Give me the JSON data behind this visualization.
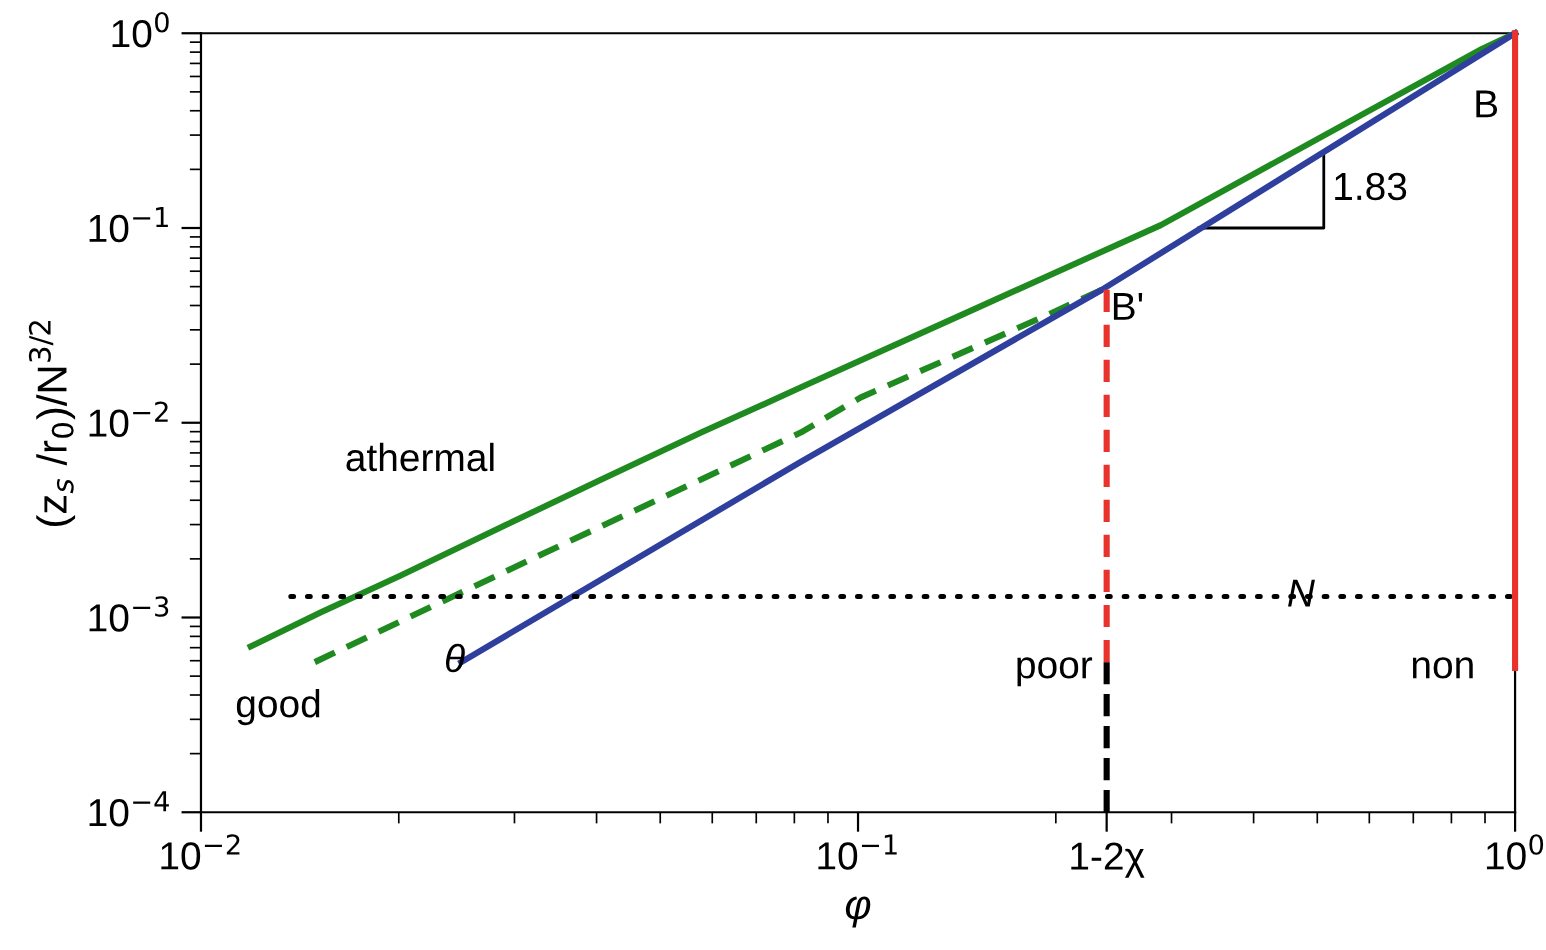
{
  "chart_data": {
    "type": "line",
    "xlabel": "φ",
    "ylabel": "(z$_{s}$ /r$_{0}$)/N$^{3/2}$",
    "log": "xy",
    "grid": false,
    "legend": false,
    "marker": "none",
    "xlim": [
      0.01,
      1
    ],
    "ylim": [
      0.0001,
      1
    ],
    "xticks": [
      {
        "value": 0.01,
        "label": "10$^{−2}$"
      },
      {
        "value": 0.1,
        "label": "10$^{−1}$"
      },
      {
        "value": 0.239,
        "label": "1-2χ"
      },
      {
        "value": 1,
        "label": "10$^{0}$"
      }
    ],
    "yticks": [
      {
        "value": 0.0001,
        "label": "10$^{−4}$"
      },
      {
        "value": 0.001,
        "label": "10$^{−3}$"
      },
      {
        "value": 0.01,
        "label": "10$^{−2}$"
      },
      {
        "value": 0.1,
        "label": "10$^{−1}$"
      },
      {
        "value": 1,
        "label": "10$^{0}$"
      }
    ],
    "series": [
      {
        "color": "#1f8a1f",
        "line_style": "solid",
        "x": [
          0.0119,
          0.0152,
          0.0201,
          0.0292,
          0.0406,
          0.0577,
          0.0819,
          0.1435,
          0.289,
          0.583,
          0.89,
          1
        ],
        "values": [
          0.00071,
          0.00106,
          0.00164,
          0.003,
          0.0051,
          0.0089,
          0.0152,
          0.0357,
          0.1035,
          0.38,
          0.83,
          1
        ]
      },
      {
        "color": "#1f8a1f",
        "line_style": "dashed",
        "x": [
          0.0149,
          0.0322,
          0.0818,
          0.101,
          0.194,
          0.235
        ],
        "values": [
          0.00059,
          0.00203,
          0.0089,
          0.0135,
          0.0357,
          0.0482
        ]
      },
      {
        "color": "#2e3f9e",
        "line_style": "solid",
        "x": [
          0.0249,
          0.0818,
          0.235,
          1
        ],
        "values": [
          0.00059,
          0.0063,
          0.0482,
          1
        ]
      },
      {
        "color": "#000000",
        "line_style": "dotted",
        "x": [
          0.0137,
          1
        ],
        "values": [
          0.00128,
          0.00128
        ]
      },
      {
        "color": "#e8322b",
        "line_style": "dashed",
        "x": [
          0.239,
          0.239
        ],
        "values": [
          0.0482,
          0.00059
        ]
      },
      {
        "color": "#000000",
        "line_style": "dashed",
        "x": [
          0.239,
          0.239
        ],
        "values": [
          0.00059,
          0.0001
        ]
      },
      {
        "color": "#e8322b",
        "line_style": "solid",
        "x": [
          1,
          1
        ],
        "values": [
          1,
          0.00055
        ]
      }
    ],
    "annotations": [
      "athermal",
      "good",
      "θ",
      "poor",
      "non",
      "B'",
      "B",
      "N",
      {
        "text": "1.83",
        "x": 0.33,
        "y": 0.1
      }
    ]
  }
}
